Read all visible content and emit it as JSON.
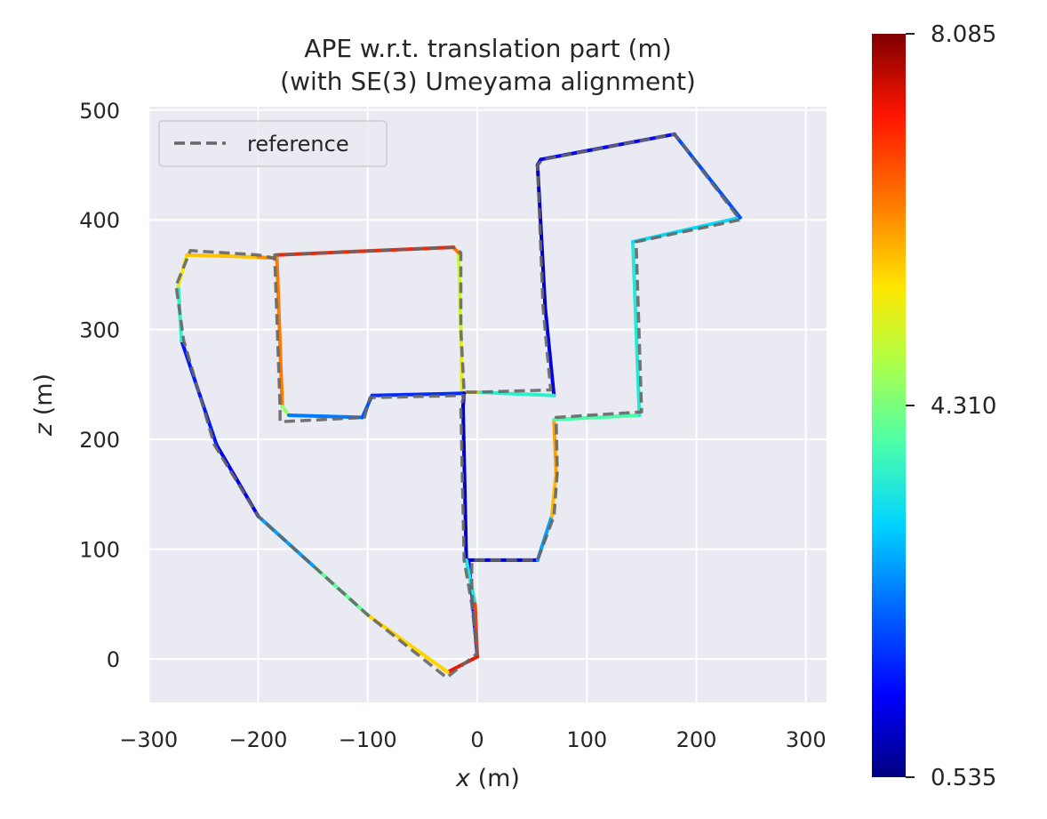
{
  "chart_data": {
    "type": "line",
    "title": "APE w.r.t. translation part (m)",
    "subtitle": "(with SE(3) Umeyama alignment)",
    "xlabel": "x (m)",
    "ylabel": "z (m)",
    "xlim": [
      -300,
      320
    ],
    "ylim": [
      -40,
      505
    ],
    "xticks": [
      -300,
      -200,
      -100,
      0,
      100,
      200,
      300
    ],
    "yticks": [
      0,
      100,
      200,
      300,
      400,
      500
    ],
    "grid": true,
    "legend": {
      "position": "top-left",
      "entries": [
        "reference"
      ]
    },
    "colormap": "jet",
    "colorbar": {
      "min": 0.535,
      "max": 8.085,
      "ticks": [
        "8.085",
        "4.310",
        "0.535"
      ]
    },
    "background_color": "#eaeaf2",
    "reference_style": {
      "color": "#666666",
      "dash": "dashed"
    },
    "series": [
      {
        "name": "reference",
        "points": [
          [
            0,
            5
          ],
          [
            -5,
            60
          ],
          [
            -5,
            90
          ],
          [
            55,
            90
          ],
          [
            70,
            130
          ],
          [
            73,
            170
          ],
          [
            72,
            220
          ],
          [
            150,
            225
          ],
          [
            145,
            380
          ],
          [
            240,
            400
          ],
          [
            180,
            478
          ],
          [
            60,
            455
          ],
          [
            55,
            450
          ],
          [
            60,
            320
          ],
          [
            67,
            245
          ],
          [
            0,
            243
          ],
          [
            -12,
            243
          ],
          [
            -15,
            300
          ],
          [
            -15,
            370
          ],
          [
            -20,
            375
          ],
          [
            -185,
            368
          ],
          [
            -180,
            230
          ],
          [
            -180,
            216
          ],
          [
            -103,
            220
          ],
          [
            -98,
            238
          ],
          [
            -12,
            240
          ],
          [
            -15,
            230
          ],
          [
            -12,
            90
          ],
          [
            -5,
            50
          ],
          [
            0,
            5
          ],
          [
            -28,
            -17
          ],
          [
            -100,
            40
          ],
          [
            -150,
            85
          ],
          [
            -200,
            130
          ],
          [
            -240,
            195
          ],
          [
            -268,
            290
          ],
          [
            -275,
            340
          ],
          [
            -262,
            372
          ],
          [
            -200,
            368
          ],
          [
            -185,
            365
          ]
        ]
      }
    ],
    "estimate": {
      "points": [
        [
          0,
          2
        ],
        [
          -5,
          60
        ],
        [
          -8,
          90
        ],
        [
          55,
          90
        ],
        [
          68,
          130
        ],
        [
          72,
          170
        ],
        [
          70,
          218
        ],
        [
          148,
          222
        ],
        [
          142,
          380
        ],
        [
          240,
          402
        ],
        [
          180,
          478
        ],
        [
          58,
          455
        ],
        [
          55,
          450
        ],
        [
          62,
          320
        ],
        [
          70,
          240
        ],
        [
          0,
          243
        ],
        [
          -14,
          243
        ],
        [
          -15,
          300
        ],
        [
          -17,
          370
        ],
        [
          -22,
          375
        ],
        [
          -183,
          368
        ],
        [
          -178,
          230
        ],
        [
          -172,
          222
        ],
        [
          -105,
          220
        ],
        [
          -96,
          240
        ],
        [
          -12,
          242
        ],
        [
          -13,
          230
        ],
        [
          -10,
          90
        ],
        [
          -2,
          50
        ],
        [
          0,
          2
        ],
        [
          -27,
          -12
        ],
        [
          -100,
          40
        ],
        [
          -150,
          85
        ],
        [
          -200,
          130
        ],
        [
          -238,
          195
        ],
        [
          -270,
          290
        ],
        [
          -273,
          340
        ],
        [
          -265,
          368
        ],
        [
          -200,
          366
        ],
        [
          -183,
          365
        ]
      ],
      "ape": [
        1.4,
        1.3,
        0.9,
        1.2,
        4.2,
        7.5,
        4.6,
        3.2,
        3.8,
        2.6,
        1.5,
        1.3,
        0.8,
        1.1,
        1.2,
        6.0,
        5.5,
        5.0,
        5.0,
        7.8,
        6.5,
        6.2,
        2.8,
        2.0,
        2.2,
        1.3,
        1.0,
        1.0,
        5.9,
        7.9,
        6.8,
        4.5,
        3.6,
        1.8,
        0.8,
        2.3,
        5.0,
        5.8,
        5.8,
        6.6
      ]
    }
  }
}
